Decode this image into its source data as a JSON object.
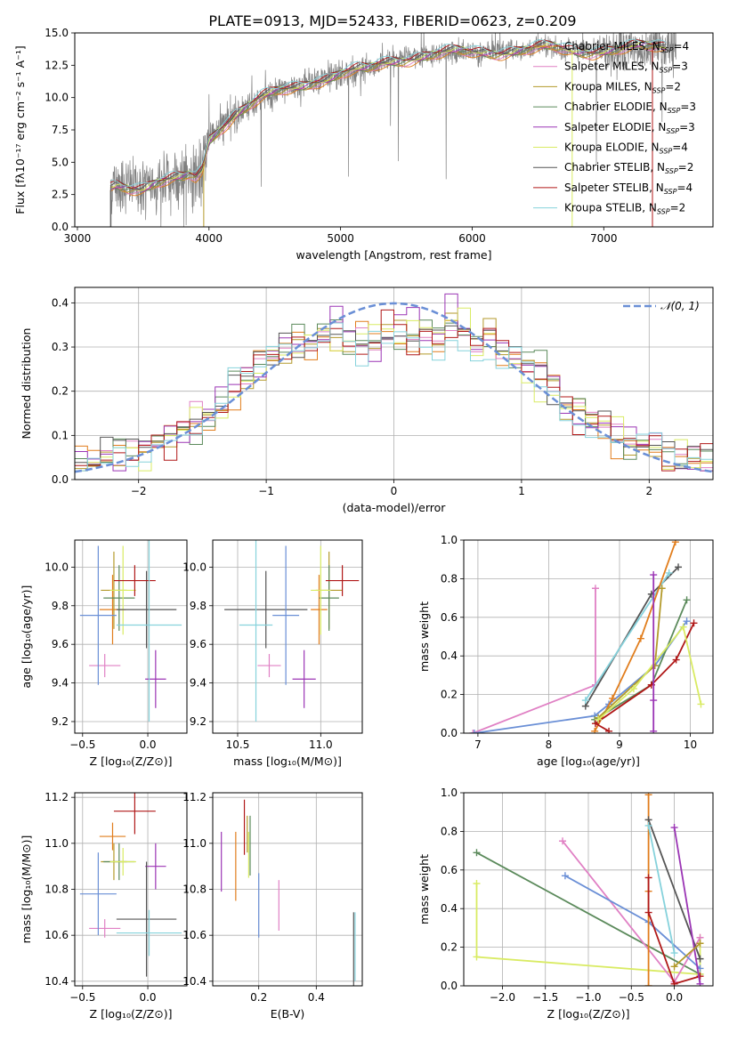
{
  "figure_title": "PLATE=0913, MJD=52433, FIBERID=0623, z=0.209",
  "colors": {
    "chabrier_miles": "#e17d1c",
    "salpeter_miles": "#e080c4",
    "kroupa_miles": "#b39a2b",
    "chabrier_elodie": "#5b8a5b",
    "salpeter_elodie": "#9b35b5",
    "kroupa_elodie": "#d9eb63",
    "chabrier_stelib": "#555555",
    "salpeter_stelib": "#b01818",
    "kroupa_stelib": "#86d2dc",
    "gaussian": "#6a8fd6",
    "data": "#808080"
  },
  "chart_data": [
    {
      "id": "spectrum",
      "type": "line",
      "title": "PLATE=0913, MJD=52433, FIBERID=0623, z=0.209",
      "xlabel": "wavelength [Angstrom, rest frame]",
      "ylabel": "Flux [fλ10⁻¹⁷ erg cm⁻² s⁻¹ A⁻¹]",
      "xlim": [
        2980,
        7830
      ],
      "ylim": [
        0,
        15
      ],
      "xticks": [
        3000,
        4000,
        5000,
        6000,
        7000
      ],
      "yticks": [
        0.0,
        2.5,
        5.0,
        7.5,
        10.0,
        12.5,
        15.0
      ],
      "xtick_labels": [
        "3000",
        "4000",
        "5000",
        "6000",
        "7000"
      ],
      "ytick_labels": [
        "0.0",
        "2.5",
        "5.0",
        "7.5",
        "10.0",
        "12.5",
        "15.0"
      ],
      "legend_position": "right",
      "legend": [
        {
          "label": "Chabrier MILES, N",
          "sub": "SSP",
          "suffix": "=4",
          "color": "#e17d1c"
        },
        {
          "label": "Salpeter MILES, N",
          "sub": "SSP",
          "suffix": "=3",
          "color": "#e080c4"
        },
        {
          "label": "Kroupa MILES, N",
          "sub": "SSP",
          "suffix": "=2",
          "color": "#b39a2b"
        },
        {
          "label": "Chabrier ELODIE, N",
          "sub": "SSP",
          "suffix": "=3",
          "color": "#5b8a5b"
        },
        {
          "label": "Salpeter ELODIE, N",
          "sub": "SSP",
          "suffix": "=3",
          "color": "#9b35b5"
        },
        {
          "label": "Kroupa ELODIE, N",
          "sub": "SSP",
          "suffix": "=4",
          "color": "#d9eb63"
        },
        {
          "label": "Chabrier STELIB, N",
          "sub": "SSP",
          "suffix": "=2",
          "color": "#555555"
        },
        {
          "label": "Salpeter STELIB, N",
          "sub": "SSP",
          "suffix": "=4",
          "color": "#b01818"
        },
        {
          "label": "Kroupa STELIB, N",
          "sub": "SSP",
          "suffix": "=2",
          "color": "#86d2dc"
        }
      ],
      "model_continuum": {
        "x": [
          3250,
          3300,
          3400,
          3500,
          3600,
          3700,
          3800,
          3850,
          3900,
          3950,
          4000,
          4050,
          4100,
          4200,
          4300,
          4400,
          4500,
          4600,
          4700,
          4800,
          4900,
          5000,
          5100,
          5200,
          5300,
          5400,
          5500,
          5600,
          5800,
          6000,
          6200,
          6400,
          6600,
          6800,
          7000,
          7200,
          7400
        ],
        "y": [
          3.2,
          3.4,
          3.2,
          3.0,
          3.3,
          3.5,
          3.7,
          4.0,
          3.9,
          4.5,
          6.8,
          7.4,
          7.9,
          8.7,
          9.3,
          9.9,
          10.3,
          10.7,
          11.0,
          11.4,
          11.5,
          11.8,
          12.0,
          12.1,
          12.6,
          12.9,
          13.1,
          13.2,
          13.4,
          13.5,
          13.6,
          13.7,
          13.8,
          13.6,
          13.7,
          13.8,
          13.9
        ]
      },
      "data_range": [
        3250,
        7550
      ]
    },
    {
      "id": "residuals",
      "type": "histogram",
      "xlabel": "(data-model)/error",
      "ylabel": "Normed distribution",
      "xlim": [
        -2.5,
        2.5
      ],
      "ylim": [
        0,
        0.435
      ],
      "xticks": [
        -2,
        -1,
        0,
        1,
        2
      ],
      "yticks": [
        0.0,
        0.1,
        0.2,
        0.3,
        0.4
      ],
      "xtick_labels": [
        "−2",
        "−1",
        "0",
        "1",
        "2"
      ],
      "ytick_labels": [
        "0.0",
        "0.1",
        "0.2",
        "0.3",
        "0.4"
      ],
      "grid": true,
      "legend_position": "top-right",
      "legend": [
        {
          "label": "𝒩(0, 1)",
          "style": "dashed",
          "color": "#6a8fd6"
        }
      ],
      "bin_width": 0.1,
      "gaussian": {
        "mean": 0,
        "sigma": 1
      }
    },
    {
      "id": "z_age",
      "type": "errorbar",
      "xlabel": "Z [log₁₀(Z/Z⊙)]",
      "ylabel": "age  [log₁₀(age/yr)]",
      "xlim": [
        -0.56,
        0.3
      ],
      "ylim": [
        9.14,
        10.14
      ],
      "xticks": [
        -0.5,
        0.0
      ],
      "yticks": [
        9.2,
        9.4,
        9.6,
        9.8,
        10.0
      ],
      "xtick_labels": [
        "−0.5",
        "0.0"
      ],
      "ytick_labels": [
        "9.2",
        "9.4",
        "9.6",
        "9.8",
        "10.0"
      ],
      "grid": true,
      "points": [
        {
          "x": -0.27,
          "xerr": 0.1,
          "y": 9.78,
          "yerr": 0.18,
          "color": "#e17d1c"
        },
        {
          "x": -0.33,
          "xerr": 0.12,
          "y": 9.49,
          "yerr": 0.06,
          "color": "#e080c4"
        },
        {
          "x": -0.26,
          "xerr": 0.1,
          "y": 9.88,
          "yerr": 0.2,
          "color": "#b39a2b"
        },
        {
          "x": -0.22,
          "xerr": 0.12,
          "y": 9.84,
          "yerr": 0.17,
          "color": "#5b8a5b"
        },
        {
          "x": 0.06,
          "xerr": 0.08,
          "y": 9.42,
          "yerr": 0.15,
          "color": "#9b35b5"
        },
        {
          "x": -0.19,
          "xerr": 0.1,
          "y": 9.88,
          "yerr": 0.23,
          "color": "#d9eb63"
        },
        {
          "x": -0.01,
          "xerr": 0.23,
          "y": 9.78,
          "yerr": 0.2,
          "color": "#555555"
        },
        {
          "x": -0.1,
          "xerr": 0.16,
          "y": 9.93,
          "yerr": 0.08,
          "color": "#b01818"
        },
        {
          "x": 0.01,
          "xerr": 0.25,
          "y": 9.7,
          "yerr": 0.5,
          "color": "#86d2dc"
        },
        {
          "x": -0.38,
          "xerr": 0.14,
          "y": 9.75,
          "yerr": 0.36,
          "color": "#6a8fd6"
        }
      ]
    },
    {
      "id": "mass_age",
      "type": "errorbar",
      "xlabel": "mass [log₁₀(M/M⊙)]",
      "ylabel": "",
      "xlim": [
        10.35,
        11.25
      ],
      "ylim": [
        9.14,
        10.14
      ],
      "xticks": [
        10.5,
        11.0
      ],
      "yticks": [
        9.2,
        9.4,
        9.6,
        9.8,
        10.0
      ],
      "xtick_labels": [
        "10.5",
        "11.0"
      ],
      "ytick_labels": [
        "9.2",
        "9.4",
        "9.6",
        "9.8",
        "10.0"
      ],
      "grid": true,
      "points": [
        {
          "x": 10.99,
          "xerr": 0.05,
          "y": 9.78,
          "yerr": 0.18,
          "color": "#e17d1c"
        },
        {
          "x": 10.69,
          "xerr": 0.07,
          "y": 9.49,
          "yerr": 0.06,
          "color": "#e080c4"
        },
        {
          "x": 11.05,
          "xerr": 0.08,
          "y": 9.88,
          "yerr": 0.2,
          "color": "#b39a2b"
        },
        {
          "x": 11.05,
          "xerr": 0.06,
          "y": 9.84,
          "yerr": 0.17,
          "color": "#5b8a5b"
        },
        {
          "x": 10.9,
          "xerr": 0.07,
          "y": 9.42,
          "yerr": 0.15,
          "color": "#9b35b5"
        },
        {
          "x": 11.0,
          "xerr": 0.06,
          "y": 9.88,
          "yerr": 0.23,
          "color": "#d9eb63"
        },
        {
          "x": 10.67,
          "xerr": 0.25,
          "y": 9.78,
          "yerr": 0.2,
          "color": "#555555"
        },
        {
          "x": 11.13,
          "xerr": 0.1,
          "y": 9.93,
          "yerr": 0.08,
          "color": "#b01818"
        },
        {
          "x": 10.61,
          "xerr": 0.1,
          "y": 9.7,
          "yerr": 0.5,
          "color": "#86d2dc"
        },
        {
          "x": 10.79,
          "xerr": 0.08,
          "y": 9.75,
          "yerr": 0.36,
          "color": "#6a8fd6"
        }
      ]
    },
    {
      "id": "age_weight",
      "type": "line",
      "xlabel": "age  [log₁₀(age/yr)]",
      "ylabel": "mass weight",
      "xlim": [
        6.8,
        10.32
      ],
      "ylim": [
        0,
        1
      ],
      "xticks": [
        7,
        8,
        9,
        10
      ],
      "yticks": [
        0.0,
        0.2,
        0.4,
        0.6,
        0.8,
        1.0
      ],
      "xtick_labels": [
        "7",
        "8",
        "9",
        "10"
      ],
      "ytick_labels": [
        "0.0",
        "0.2",
        "0.4",
        "0.6",
        "0.8",
        "1.0"
      ],
      "grid": true,
      "series": [
        {
          "color": "#e080c4",
          "x": [
            6.93,
            8.66,
            8.66
          ],
          "y": [
            0.0,
            0.25,
            0.75
          ]
        },
        {
          "color": "#6a8fd6",
          "x": [
            6.95,
            8.65,
            8.85,
            9.5,
            9.95
          ],
          "y": [
            0.0,
            0.09,
            0.15,
            0.35,
            0.58
          ]
        },
        {
          "color": "#555555",
          "x": [
            8.52,
            9.45,
            9.83
          ],
          "y": [
            0.14,
            0.72,
            0.86
          ]
        },
        {
          "color": "#86d2dc",
          "x": [
            8.52,
            9.7
          ],
          "y": [
            0.17,
            0.83
          ]
        },
        {
          "color": "#e17d1c",
          "x": [
            8.65,
            8.9,
            9.3,
            9.79
          ],
          "y": [
            0.01,
            0.18,
            0.49,
            0.99
          ]
        },
        {
          "color": "#5b8a5b",
          "x": [
            8.65,
            9.45,
            9.95
          ],
          "y": [
            0.07,
            0.25,
            0.69
          ]
        },
        {
          "color": "#b39a2b",
          "x": [
            8.7,
            9.5,
            9.6
          ],
          "y": [
            0.08,
            0.35,
            0.75
          ]
        },
        {
          "color": "#b01818",
          "x": [
            8.85,
            8.66,
            9.45,
            9.8,
            10.05
          ],
          "y": [
            0.01,
            0.05,
            0.25,
            0.38,
            0.57
          ]
        },
        {
          "color": "#d9eb63",
          "x": [
            8.7,
            9.2,
            9.9,
            10.15
          ],
          "y": [
            0.07,
            0.23,
            0.55,
            0.15
          ]
        },
        {
          "color": "#9b35b5",
          "x": [
            9.48,
            9.48,
            9.48
          ],
          "y": [
            0.01,
            0.17,
            0.82
          ]
        }
      ]
    },
    {
      "id": "z_mass",
      "type": "errorbar",
      "xlabel": "Z [log₁₀(Z/Z⊙)]",
      "ylabel": "mass [log₁₀(M/M⊙)]",
      "xlim": [
        -0.56,
        0.3
      ],
      "ylim": [
        10.38,
        11.22
      ],
      "xticks": [
        -0.5,
        0.0
      ],
      "yticks": [
        10.4,
        10.6,
        10.8,
        11.0,
        11.2
      ],
      "xtick_labels": [
        "−0.5",
        "0.0"
      ],
      "ytick_labels": [
        "10.4",
        "10.6",
        "10.8",
        "11.0",
        "11.2"
      ],
      "grid": true,
      "points": [
        {
          "x": -0.27,
          "xerr": 0.1,
          "y": 11.03,
          "yerr": 0.06,
          "color": "#e17d1c"
        },
        {
          "x": -0.33,
          "xerr": 0.12,
          "y": 10.63,
          "yerr": 0.04,
          "color": "#e080c4"
        },
        {
          "x": -0.26,
          "xerr": 0.1,
          "y": 10.92,
          "yerr": 0.08,
          "color": "#b39a2b"
        },
        {
          "x": -0.22,
          "xerr": 0.12,
          "y": 10.92,
          "yerr": 0.08,
          "color": "#5b8a5b"
        },
        {
          "x": 0.06,
          "xerr": 0.08,
          "y": 10.9,
          "yerr": 0.1,
          "color": "#9b35b5"
        },
        {
          "x": -0.19,
          "xerr": 0.1,
          "y": 10.92,
          "yerr": 0.06,
          "color": "#d9eb63"
        },
        {
          "x": -0.01,
          "xerr": 0.23,
          "y": 10.67,
          "yerr": 0.25,
          "color": "#555555"
        },
        {
          "x": -0.1,
          "xerr": 0.16,
          "y": 11.14,
          "yerr": 0.1,
          "color": "#b01818"
        },
        {
          "x": 0.01,
          "xerr": 0.25,
          "y": 10.61,
          "yerr": 0.1,
          "color": "#86d2dc"
        },
        {
          "x": -0.38,
          "xerr": 0.14,
          "y": 10.78,
          "yerr": 0.18,
          "color": "#6a8fd6"
        }
      ]
    },
    {
      "id": "ebv_mass",
      "type": "errorbar",
      "xlabel": "E(B-V)",
      "ylabel": "",
      "xlim": [
        0.04,
        0.56
      ],
      "ylim": [
        10.38,
        11.22
      ],
      "xticks": [
        0.2,
        0.4
      ],
      "yticks": [
        10.4,
        10.6,
        10.8,
        11.0,
        11.2
      ],
      "xtick_labels": [
        "0.2",
        "0.4"
      ],
      "ytick_labels": [
        "10.4",
        "10.6",
        "10.8",
        "11.0",
        "11.2"
      ],
      "grid": true,
      "points": [
        {
          "x": 0.12,
          "y": 10.9,
          "yerr": 0.15,
          "color": "#e17d1c"
        },
        {
          "x": 0.27,
          "y": 10.73,
          "yerr": 0.11,
          "color": "#e080c4"
        },
        {
          "x": 0.16,
          "y": 11.04,
          "yerr": 0.08,
          "color": "#b39a2b"
        },
        {
          "x": 0.17,
          "y": 10.99,
          "yerr": 0.13,
          "color": "#5b8a5b"
        },
        {
          "x": 0.07,
          "y": 10.92,
          "yerr": 0.13,
          "color": "#9b35b5"
        },
        {
          "x": 0.165,
          "y": 10.95,
          "yerr": 0.1,
          "color": "#d9eb63"
        },
        {
          "x": 0.53,
          "y": 10.5,
          "yerr": 0.2,
          "color": "#555555"
        },
        {
          "x": 0.15,
          "y": 11.07,
          "yerr": 0.12,
          "color": "#b01818"
        },
        {
          "x": 0.535,
          "y": 10.55,
          "yerr": 0.15,
          "color": "#86d2dc"
        },
        {
          "x": 0.2,
          "y": 10.73,
          "yerr": 0.14,
          "color": "#6a8fd6"
        }
      ]
    },
    {
      "id": "z_weight",
      "type": "line",
      "xlabel": "Z [log₁₀(Z/Z⊙)]",
      "ylabel": "mass weight",
      "xlim": [
        -2.45,
        0.45
      ],
      "ylim": [
        0,
        1
      ],
      "xticks": [
        -2.0,
        -1.5,
        -1.0,
        -0.5,
        0.0
      ],
      "yticks": [
        0.0,
        0.2,
        0.4,
        0.6,
        0.8,
        1.0
      ],
      "xtick_labels": [
        "−2.0",
        "−1.5",
        "−1.0",
        "−0.5",
        "0.0"
      ],
      "ytick_labels": [
        "0.0",
        "0.2",
        "0.4",
        "0.6",
        "0.8",
        "1.0"
      ],
      "grid": true,
      "series": [
        {
          "color": "#5b8a5b",
          "x": [
            -2.3,
            0.3
          ],
          "y": [
            0.69,
            0.06
          ]
        },
        {
          "color": "#d9eb63",
          "x": [
            -2.3,
            -2.3,
            0.3,
            0.3
          ],
          "y": [
            0.53,
            0.15,
            0.06,
            0.25
          ]
        },
        {
          "color": "#e080c4",
          "x": [
            -1.3,
            0.0,
            0.3
          ],
          "y": [
            0.75,
            0.02,
            0.25
          ]
        },
        {
          "color": "#6a8fd6",
          "x": [
            -1.27,
            -0.3,
            0.3
          ],
          "y": [
            0.57,
            0.33,
            0.09
          ]
        },
        {
          "color": "#e17d1c",
          "x": [
            -0.3,
            -0.3,
            -0.3
          ],
          "y": [
            0.0,
            0.49,
            0.99
          ]
        },
        {
          "color": "#555555",
          "x": [
            -0.3,
            0.3
          ],
          "y": [
            0.86,
            0.14
          ]
        },
        {
          "color": "#86d2dc",
          "x": [
            -0.3,
            0.0
          ],
          "y": [
            0.83,
            0.17
          ]
        },
        {
          "color": "#b01818",
          "x": [
            -0.3,
            -0.3,
            0.0,
            0.3
          ],
          "y": [
            0.56,
            0.38,
            0.01,
            0.05
          ]
        },
        {
          "color": "#9b35b5",
          "x": [
            0.0,
            0.3
          ],
          "y": [
            0.82,
            0.01
          ]
        },
        {
          "color": "#b39a2b",
          "x": [
            0.0,
            0.3
          ],
          "y": [
            0.1,
            0.22
          ]
        }
      ]
    }
  ]
}
